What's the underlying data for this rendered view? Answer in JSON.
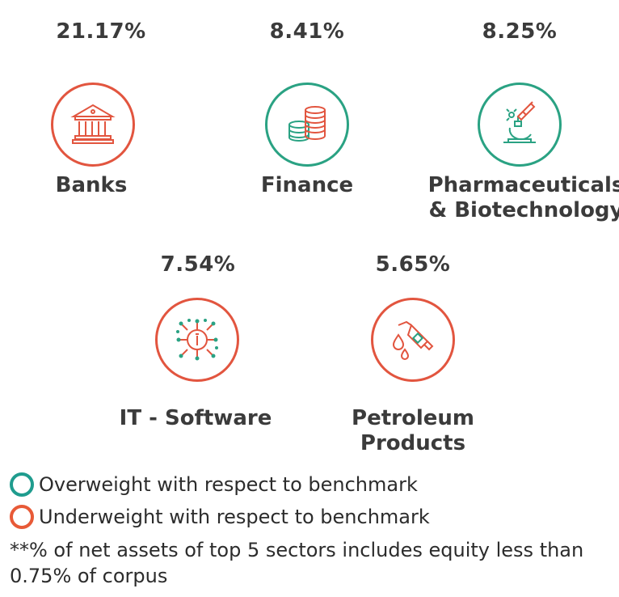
{
  "sectors": [
    {
      "pct": "21.17%",
      "name": "Banks",
      "status": "underweight",
      "icon": "bank-icon"
    },
    {
      "pct": "8.41%",
      "name": "Finance",
      "status": "overweight",
      "icon": "coins-icon"
    },
    {
      "pct": "8.25%",
      "name_line1": "Pharmaceuticals",
      "name_line2": "& Biotechnology",
      "status": "overweight",
      "icon": "microscope-icon"
    },
    {
      "pct": "7.54%",
      "name": "IT - Software",
      "status": "underweight",
      "icon": "chip-icon"
    },
    {
      "pct": "5.65%",
      "name_line1": "Petroleum",
      "name_line2": "Products",
      "status": "underweight",
      "icon": "fuel-nozzle-icon"
    }
  ],
  "colors": {
    "underweight": "#e2553f",
    "overweight": "#2aa283"
  },
  "legend": {
    "overweight": "Overweight with respect to benchmark",
    "underweight": "Underweight with respect to benchmark"
  },
  "note": "**% of net assets of top 5 sectors includes equity less than 0.75% of corpus"
}
